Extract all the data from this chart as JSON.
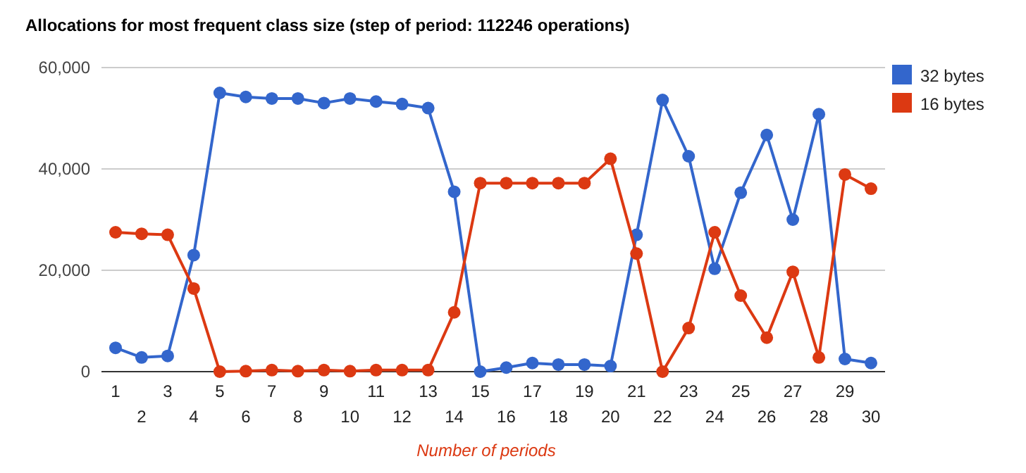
{
  "chart_data": {
    "type": "line",
    "title": "Allocations for most frequent class size (step of period: 112246 operations)",
    "xlabel": "Number of periods",
    "categories": [
      "1",
      "2",
      "3",
      "4",
      "5",
      "6",
      "7",
      "8",
      "9",
      "10",
      "11",
      "12",
      "13",
      "14",
      "15",
      "16",
      "17",
      "18",
      "19",
      "20",
      "21",
      "22",
      "23",
      "24",
      "25",
      "26",
      "27",
      "28",
      "29",
      "30"
    ],
    "series": [
      {
        "name": "32 bytes",
        "color": "#3366cc",
        "values": [
          4700,
          2800,
          3100,
          23000,
          55000,
          54200,
          53900,
          53900,
          53000,
          53900,
          53300,
          52800,
          52000,
          35500,
          0,
          800,
          1700,
          1400,
          1400,
          1100,
          27000,
          53600,
          42500,
          20300,
          35300,
          46700,
          30000,
          50800,
          2500,
          1700
        ]
      },
      {
        "name": "16 bytes",
        "color": "#dc3912",
        "values": [
          27500,
          27200,
          27000,
          16400,
          0,
          100,
          300,
          100,
          300,
          100,
          300,
          300,
          300,
          11700,
          37200,
          37200,
          37200,
          37200,
          37200,
          42000,
          23300,
          0,
          8600,
          27500,
          15000,
          6700,
          19700,
          2800,
          38900,
          36100
        ]
      }
    ],
    "ylim": [
      0,
      60000
    ],
    "yticks": [
      {
        "value": 0,
        "label": "0"
      },
      {
        "value": 20000,
        "label": "20,000"
      },
      {
        "value": 40000,
        "label": "40,000"
      },
      {
        "value": 60000,
        "label": "60,000"
      }
    ],
    "grid": "y",
    "legend": "right",
    "marker": "circle",
    "line_style": "solid"
  }
}
